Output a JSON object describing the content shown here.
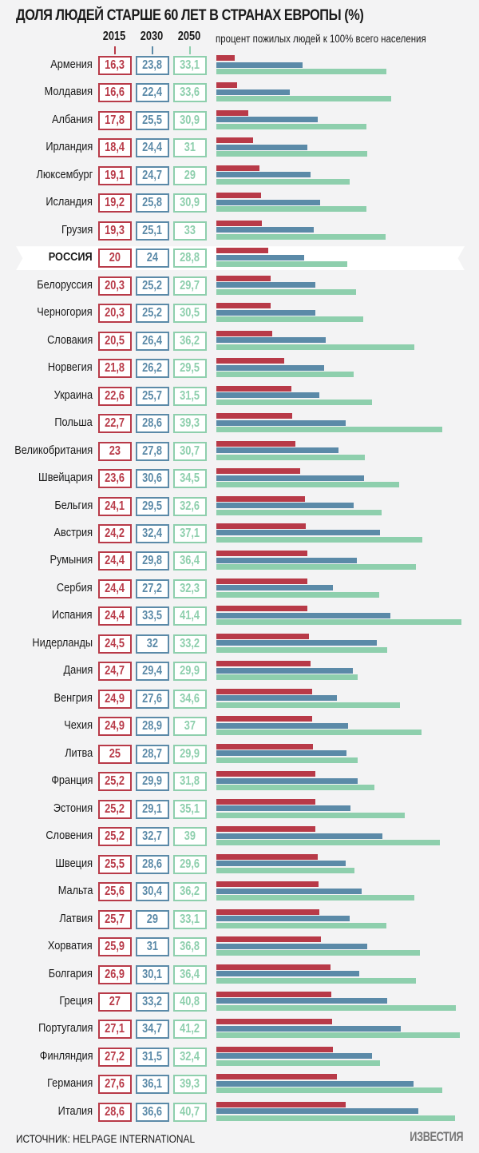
{
  "chart_data": {
    "type": "bar",
    "orientation": "horizontal",
    "title": "ДОЛЯ ЛЮДЕЙ СТАРШЕ 60 ЛЕТ В СТРАНАХ ЕВРОПЫ (%)",
    "subtitle": "процент пожилых людей к 100% всего населения",
    "highlight": "РОССИЯ",
    "colors": {
      "2015": "#b83a48",
      "2030": "#5b8aa8",
      "2050": "#8ecfad"
    },
    "categories": [
      "Армения",
      "Молдавия",
      "Албания",
      "Ирландия",
      "Люксембург",
      "Исландия",
      "Грузия",
      "РОССИЯ",
      "Белоруссия",
      "Черногория",
      "Словакия",
      "Норвегия",
      "Украина",
      "Польша",
      "Великобритания",
      "Швейцария",
      "Бельгия",
      "Австрия",
      "Румыния",
      "Сербия",
      "Испания",
      "Нидерланды",
      "Дания",
      "Венгрия",
      "Чехия",
      "Литва",
      "Франция",
      "Эстония",
      "Словения",
      "Швеция",
      "Мальта",
      "Латвия",
      "Хорватия",
      "Болгария",
      "Греция",
      "Португалия",
      "Финляндия",
      "Германия",
      "Италия"
    ],
    "series": [
      {
        "name": "2015",
        "values": [
          16.3,
          16.6,
          17.8,
          18.4,
          19.1,
          19.2,
          19.3,
          20,
          20.3,
          20.3,
          20.5,
          21.8,
          22.6,
          22.7,
          23,
          23.6,
          24.1,
          24.2,
          24.4,
          24.4,
          24.4,
          24.5,
          24.7,
          24.9,
          24.9,
          25,
          25.2,
          25.2,
          25.2,
          25.5,
          25.6,
          25.7,
          25.9,
          26.9,
          27,
          27.1,
          27.2,
          27.6,
          28.6
        ]
      },
      {
        "name": "2030",
        "values": [
          23.8,
          22.4,
          25.5,
          24.4,
          24.7,
          25.8,
          25.1,
          24,
          25.2,
          25.2,
          26.4,
          26.2,
          25.7,
          28.6,
          27.8,
          30.6,
          29.5,
          32.4,
          29.8,
          27.2,
          33.5,
          32,
          29.4,
          27.6,
          28.9,
          28.7,
          29.9,
          29.1,
          32.7,
          28.6,
          30.4,
          29,
          31,
          30.1,
          33.2,
          34.7,
          31.5,
          36.1,
          36.6
        ]
      },
      {
        "name": "2050",
        "values": [
          33.1,
          33.6,
          30.9,
          31,
          29,
          30.9,
          33,
          28.8,
          29.7,
          30.5,
          36.2,
          29.5,
          31.5,
          39.3,
          30.7,
          34.5,
          32.6,
          37.1,
          36.4,
          32.3,
          41.4,
          33.2,
          29.9,
          34.6,
          37,
          29.9,
          31.8,
          35.1,
          39,
          29.6,
          36.2,
          33.1,
          36.8,
          36.4,
          40.8,
          41.2,
          32.4,
          39.3,
          40.7
        ]
      }
    ],
    "value_labels": {
      "2015": [
        "16,3",
        "16,6",
        "17,8",
        "18,4",
        "19,1",
        "19,2",
        "19,3",
        "20",
        "20,3",
        "20,3",
        "20,5",
        "21,8",
        "22,6",
        "22,7",
        "23",
        "23,6",
        "24,1",
        "24,2",
        "24,4",
        "24,4",
        "24,4",
        "24,5",
        "24,7",
        "24,9",
        "24,9",
        "25",
        "25,2",
        "25,2",
        "25,2",
        "25,5",
        "25,6",
        "25,7",
        "25,9",
        "26,9",
        "27",
        "27,1",
        "27,2",
        "27,6",
        "28,6"
      ],
      "2030": [
        "23,8",
        "22,4",
        "25,5",
        "24,4",
        "24,7",
        "25,8",
        "25,1",
        "24",
        "25,2",
        "25,2",
        "26,4",
        "26,2",
        "25,7",
        "28,6",
        "27,8",
        "30,6",
        "29,5",
        "32,4",
        "29,8",
        "27,2",
        "33,5",
        "32",
        "29,4",
        "27,6",
        "28,9",
        "28,7",
        "29,9",
        "29,1",
        "32,7",
        "28,6",
        "30,4",
        "29",
        "31",
        "30,1",
        "33,2",
        "34,7",
        "31,5",
        "36,1",
        "36,6"
      ],
      "2050": [
        "33,1",
        "33,6",
        "30,9",
        "31",
        "29",
        "30,9",
        "33",
        "28,8",
        "29,7",
        "30,5",
        "36,2",
        "29,5",
        "31,5",
        "39,3",
        "30,7",
        "34,5",
        "32,6",
        "37,1",
        "36,4",
        "32,3",
        "41,4",
        "33,2",
        "29,9",
        "34,6",
        "37",
        "29,9",
        "31,8",
        "35,1",
        "39",
        "29,6",
        "36,2",
        "33,1",
        "36,8",
        "36,4",
        "40,8",
        "41,2",
        "32,4",
        "39,3",
        "40,7"
      ]
    },
    "grid": false
  },
  "footer": {
    "source": "ИСТОЧНИК: HELPAGE INTERNATIONAL",
    "logo": "ИЗВЕСТИЯ"
  }
}
